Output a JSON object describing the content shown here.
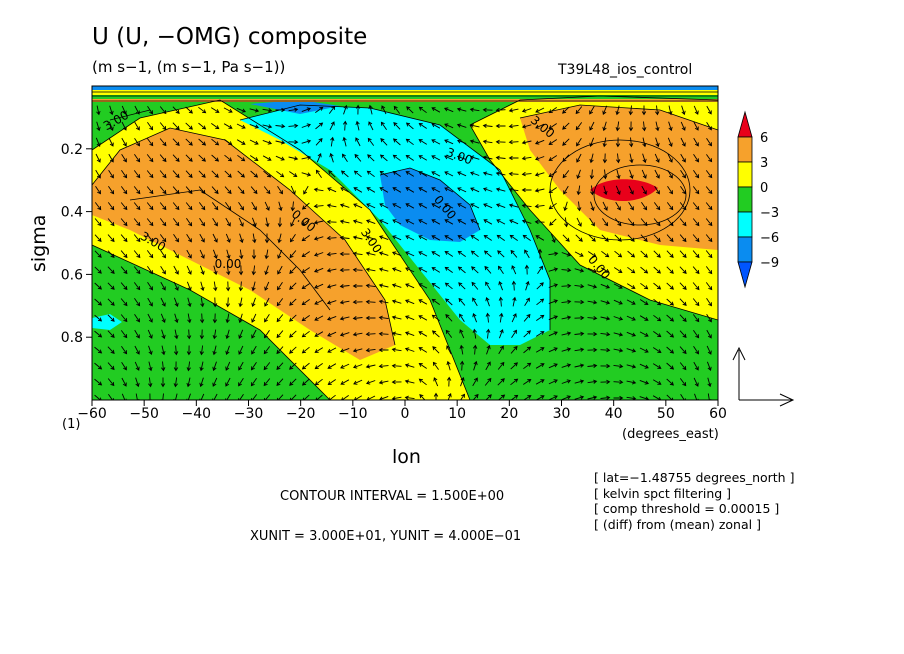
{
  "header": {
    "title": "U (U, −OMG) composite",
    "units": "(m s−1, (m s−1, Pa s−1))",
    "run_name": "T39L48_ios_control"
  },
  "axes": {
    "xlabel": "lon",
    "ylabel": "sigma",
    "x_units_note": "(degrees_east)",
    "x_ticks": [
      "−60",
      "−50",
      "−40",
      "−30",
      "−20",
      "−10",
      "0",
      "10",
      "20",
      "30",
      "40",
      "50",
      "60"
    ],
    "y_ticks": [
      "0.2",
      "0.4",
      "0.6",
      "0.8"
    ],
    "corner_label": "(1)"
  },
  "colorbar": {
    "ticks": [
      "6",
      "3",
      "0",
      "−3",
      "−6",
      "−9"
    ],
    "colors": [
      "#e8001a",
      "#f6a12c",
      "#ffff00",
      "#22cc22",
      "#00ffff",
      "#0a8cf0",
      "#0055ff"
    ]
  },
  "footer": {
    "contour_interval": "CONTOUR INTERVAL = 1.500E+00",
    "xyunit": "XUNIT = 3.000E+01, YUNIT = 4.000E−01",
    "notes": [
      "[ lat=−1.48755 degrees_north ]",
      "[ kelvin spct filtering ]",
      "[ comp threshold = 0.00015 ]",
      "[ (diff) from (mean) zonal ]"
    ]
  },
  "chart_data": {
    "type": "heatmap",
    "description_fields": "filled contours of U with overlaid (U, -OMG) wind vectors",
    "xlim": [
      -60,
      60
    ],
    "ylim": [
      1.0,
      0.0
    ],
    "y_inverted": true,
    "levels": [
      -9,
      -6,
      -3,
      0,
      3,
      6
    ],
    "contour_labels": [
      "3.00",
      "0.00",
      "3.00",
      "0.00",
      "3.00",
      "0.00",
      "3.00",
      "3.00",
      "0.00"
    ],
    "features": [
      {
        "name": "westerly max west",
        "lon": -25,
        "sigma": 0.45,
        "value": 4.5
      },
      {
        "name": "westerly max east",
        "lon": 44,
        "sigma": 0.34,
        "value": 6.5
      },
      {
        "name": "easterly min",
        "lon": 3,
        "sigma": 0.38,
        "value": -7.5
      }
    ]
  }
}
